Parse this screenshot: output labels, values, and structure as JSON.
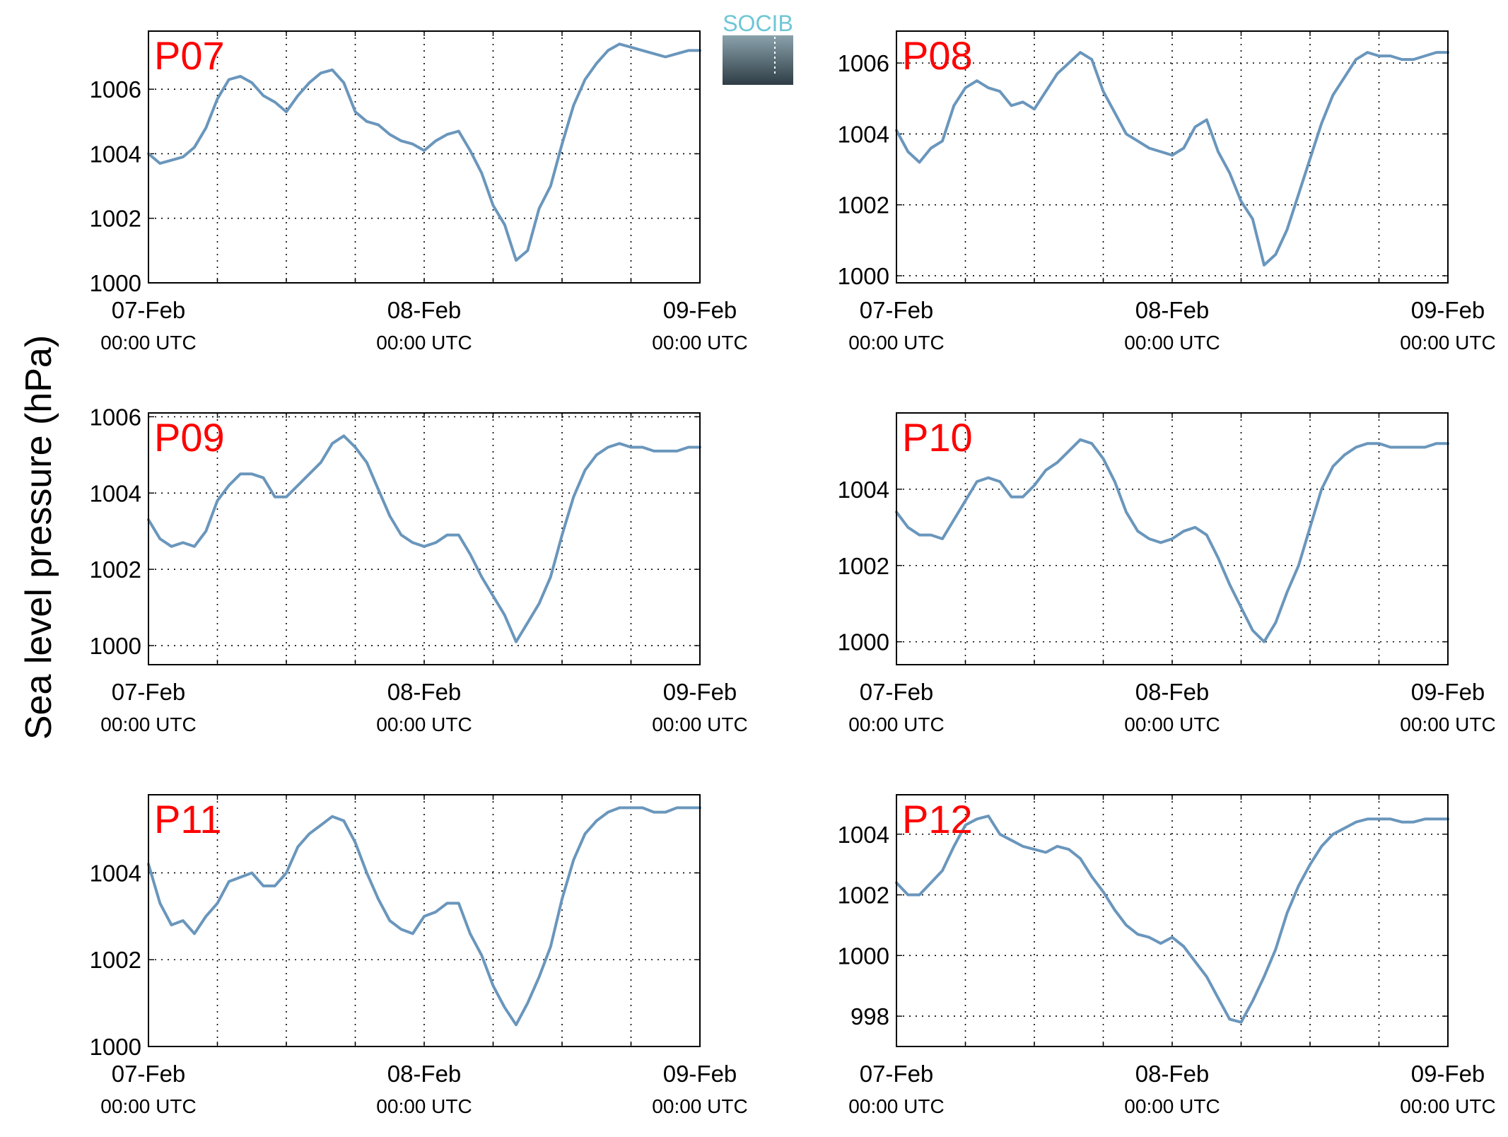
{
  "figure": {
    "ylabel": "Sea level pressure (hPa)",
    "logo_text": "SOCIB",
    "x_ticks": [
      {
        "date": "07-Feb",
        "time": "00:00 UTC"
      },
      {
        "date": "08-Feb",
        "time": "00:00 UTC"
      },
      {
        "date": "09-Feb",
        "time": "00:00 UTC"
      }
    ]
  },
  "colors": {
    "line": "#6a96bc",
    "panel_label": "#ff0000",
    "logo_top": "#6ec6d6",
    "logo_bottom": "#2f3d45"
  },
  "chart_data": [
    {
      "type": "line",
      "title": "P07",
      "xlabel": "",
      "ylabel": "",
      "x_unit": "hours since 07-Feb 00:00 UTC",
      "xlim": [
        0,
        48
      ],
      "ylim": [
        1000,
        1007.8
      ],
      "yticks": [
        1000,
        1002,
        1004,
        1006
      ],
      "grid": true,
      "x": [
        0,
        1,
        2,
        3,
        4,
        5,
        6,
        7,
        8,
        9,
        10,
        11,
        12,
        13,
        14,
        15,
        16,
        17,
        18,
        19,
        20,
        21,
        22,
        23,
        24,
        25,
        26,
        27,
        28,
        29,
        30,
        31,
        32,
        33,
        34,
        35,
        36,
        37,
        38,
        39,
        40,
        41,
        42,
        43,
        44,
        45,
        46,
        47,
        48
      ],
      "values": [
        1004.0,
        1003.7,
        1003.8,
        1003.9,
        1004.2,
        1004.8,
        1005.7,
        1006.3,
        1006.4,
        1006.2,
        1005.8,
        1005.6,
        1005.3,
        1005.8,
        1006.2,
        1006.5,
        1006.6,
        1006.2,
        1005.3,
        1005.0,
        1004.9,
        1004.6,
        1004.4,
        1004.3,
        1004.1,
        1004.4,
        1004.6,
        1004.7,
        1004.1,
        1003.4,
        1002.4,
        1001.8,
        1000.7,
        1001.0,
        1002.3,
        1003.0,
        1004.3,
        1005.5,
        1006.3,
        1006.8,
        1007.2,
        1007.4,
        1007.3,
        1007.2,
        1007.1,
        1007.0,
        1007.1,
        1007.2,
        1007.2
      ]
    },
    {
      "type": "line",
      "title": "P08",
      "xlabel": "",
      "ylabel": "",
      "x_unit": "hours since 07-Feb 00:00 UTC",
      "xlim": [
        0,
        48
      ],
      "ylim": [
        999.8,
        1006.9
      ],
      "yticks": [
        1000,
        1002,
        1004,
        1006
      ],
      "grid": true,
      "x": [
        0,
        1,
        2,
        3,
        4,
        5,
        6,
        7,
        8,
        9,
        10,
        11,
        12,
        13,
        14,
        15,
        16,
        17,
        18,
        19,
        20,
        21,
        22,
        23,
        24,
        25,
        26,
        27,
        28,
        29,
        30,
        31,
        32,
        33,
        34,
        35,
        36,
        37,
        38,
        39,
        40,
        41,
        42,
        43,
        44,
        45,
        46,
        47,
        48
      ],
      "values": [
        1004.1,
        1003.5,
        1003.2,
        1003.6,
        1003.8,
        1004.8,
        1005.3,
        1005.5,
        1005.3,
        1005.2,
        1004.8,
        1004.9,
        1004.7,
        1005.2,
        1005.7,
        1006.0,
        1006.3,
        1006.1,
        1005.2,
        1004.6,
        1004.0,
        1003.8,
        1003.6,
        1003.5,
        1003.4,
        1003.6,
        1004.2,
        1004.4,
        1003.5,
        1002.9,
        1002.1,
        1001.6,
        1000.3,
        1000.6,
        1001.3,
        1002.3,
        1003.3,
        1004.3,
        1005.1,
        1005.6,
        1006.1,
        1006.3,
        1006.2,
        1006.2,
        1006.1,
        1006.1,
        1006.2,
        1006.3,
        1006.3
      ]
    },
    {
      "type": "line",
      "title": "P09",
      "xlabel": "",
      "ylabel": "",
      "x_unit": "hours since 07-Feb 00:00 UTC",
      "xlim": [
        0,
        48
      ],
      "ylim": [
        999.5,
        1006.1
      ],
      "yticks": [
        1000,
        1002,
        1004,
        1006
      ],
      "grid": true,
      "x": [
        0,
        1,
        2,
        3,
        4,
        5,
        6,
        7,
        8,
        9,
        10,
        11,
        12,
        13,
        14,
        15,
        16,
        17,
        18,
        19,
        20,
        21,
        22,
        23,
        24,
        25,
        26,
        27,
        28,
        29,
        30,
        31,
        32,
        33,
        34,
        35,
        36,
        37,
        38,
        39,
        40,
        41,
        42,
        43,
        44,
        45,
        46,
        47,
        48
      ],
      "values": [
        1003.3,
        1002.8,
        1002.6,
        1002.7,
        1002.6,
        1003.0,
        1003.8,
        1004.2,
        1004.5,
        1004.5,
        1004.4,
        1003.9,
        1003.9,
        1004.2,
        1004.5,
        1004.8,
        1005.3,
        1005.5,
        1005.2,
        1004.8,
        1004.1,
        1003.4,
        1002.9,
        1002.7,
        1002.6,
        1002.7,
        1002.9,
        1002.9,
        1002.4,
        1001.8,
        1001.3,
        1000.8,
        1000.1,
        1000.6,
        1001.1,
        1001.8,
        1002.9,
        1003.9,
        1004.6,
        1005.0,
        1005.2,
        1005.3,
        1005.2,
        1005.2,
        1005.1,
        1005.1,
        1005.1,
        1005.2,
        1005.2
      ]
    },
    {
      "type": "line",
      "title": "P10",
      "xlabel": "",
      "ylabel": "",
      "x_unit": "hours since 07-Feb 00:00 UTC",
      "xlim": [
        0,
        48
      ],
      "ylim": [
        999.4,
        1006.0
      ],
      "yticks": [
        1000,
        1002,
        1004
      ],
      "grid": true,
      "x": [
        0,
        1,
        2,
        3,
        4,
        5,
        6,
        7,
        8,
        9,
        10,
        11,
        12,
        13,
        14,
        15,
        16,
        17,
        18,
        19,
        20,
        21,
        22,
        23,
        24,
        25,
        26,
        27,
        28,
        29,
        30,
        31,
        32,
        33,
        34,
        35,
        36,
        37,
        38,
        39,
        40,
        41,
        42,
        43,
        44,
        45,
        46,
        47,
        48
      ],
      "values": [
        1003.4,
        1003.0,
        1002.8,
        1002.8,
        1002.7,
        1003.2,
        1003.7,
        1004.2,
        1004.3,
        1004.2,
        1003.8,
        1003.8,
        1004.1,
        1004.5,
        1004.7,
        1005.0,
        1005.3,
        1005.2,
        1004.8,
        1004.2,
        1003.4,
        1002.9,
        1002.7,
        1002.6,
        1002.7,
        1002.9,
        1003.0,
        1002.8,
        1002.2,
        1001.5,
        1000.9,
        1000.3,
        1000.0,
        1000.5,
        1001.3,
        1002.0,
        1003.0,
        1004.0,
        1004.6,
        1004.9,
        1005.1,
        1005.2,
        1005.2,
        1005.1,
        1005.1,
        1005.1,
        1005.1,
        1005.2,
        1005.2
      ]
    },
    {
      "type": "line",
      "title": "P11",
      "xlabel": "",
      "ylabel": "",
      "x_unit": "hours since 07-Feb 00:00 UTC",
      "xlim": [
        0,
        48
      ],
      "ylim": [
        1000,
        1005.8
      ],
      "yticks": [
        1000,
        1002,
        1004
      ],
      "grid": true,
      "x": [
        0,
        1,
        2,
        3,
        4,
        5,
        6,
        7,
        8,
        9,
        10,
        11,
        12,
        13,
        14,
        15,
        16,
        17,
        18,
        19,
        20,
        21,
        22,
        23,
        24,
        25,
        26,
        27,
        28,
        29,
        30,
        31,
        32,
        33,
        34,
        35,
        36,
        37,
        38,
        39,
        40,
        41,
        42,
        43,
        44,
        45,
        46,
        47,
        48
      ],
      "values": [
        1004.2,
        1003.3,
        1002.8,
        1002.9,
        1002.6,
        1003.0,
        1003.3,
        1003.8,
        1003.9,
        1004.0,
        1003.7,
        1003.7,
        1004.0,
        1004.6,
        1004.9,
        1005.1,
        1005.3,
        1005.2,
        1004.7,
        1004.0,
        1003.4,
        1002.9,
        1002.7,
        1002.6,
        1003.0,
        1003.1,
        1003.3,
        1003.3,
        1002.6,
        1002.1,
        1001.4,
        1000.9,
        1000.5,
        1001.0,
        1001.6,
        1002.3,
        1003.4,
        1004.3,
        1004.9,
        1005.2,
        1005.4,
        1005.5,
        1005.5,
        1005.5,
        1005.4,
        1005.4,
        1005.5,
        1005.5,
        1005.5
      ]
    },
    {
      "type": "line",
      "title": "P12",
      "xlabel": "",
      "ylabel": "",
      "x_unit": "hours since 07-Feb 00:00 UTC",
      "xlim": [
        0,
        48
      ],
      "ylim": [
        997.0,
        1005.3
      ],
      "yticks": [
        998,
        1000,
        1002,
        1004
      ],
      "grid": true,
      "x": [
        0,
        1,
        2,
        3,
        4,
        5,
        6,
        7,
        8,
        9,
        10,
        11,
        12,
        13,
        14,
        15,
        16,
        17,
        18,
        19,
        20,
        21,
        22,
        23,
        24,
        25,
        26,
        27,
        28,
        29,
        30,
        31,
        32,
        33,
        34,
        35,
        36,
        37,
        38,
        39,
        40,
        41,
        42,
        43,
        44,
        45,
        46,
        47,
        48
      ],
      "values": [
        1002.4,
        1002.0,
        1002.0,
        1002.4,
        1002.8,
        1003.6,
        1004.3,
        1004.5,
        1004.6,
        1004.0,
        1003.8,
        1003.6,
        1003.5,
        1003.4,
        1003.6,
        1003.5,
        1003.2,
        1002.6,
        1002.1,
        1001.5,
        1001.0,
        1000.7,
        1000.6,
        1000.4,
        1000.6,
        1000.3,
        999.8,
        999.3,
        998.6,
        997.9,
        997.8,
        998.5,
        999.3,
        1000.2,
        1001.4,
        1002.3,
        1003.0,
        1003.6,
        1004.0,
        1004.2,
        1004.4,
        1004.5,
        1004.5,
        1004.5,
        1004.4,
        1004.4,
        1004.5,
        1004.5,
        1004.5
      ]
    }
  ]
}
